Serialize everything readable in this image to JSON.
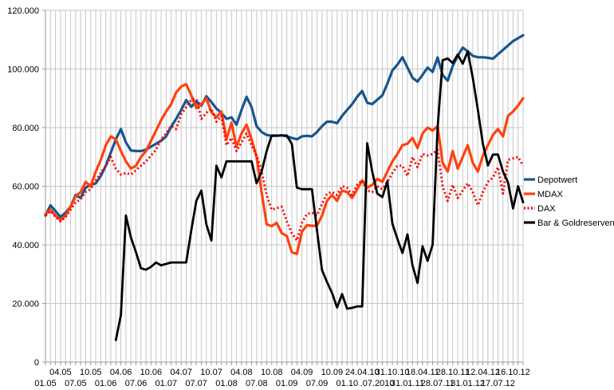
{
  "chart_data": {
    "type": "line",
    "title": "",
    "grid": true,
    "legend_position": "right",
    "x_start": "01.2005",
    "x_end": "12.2012",
    "points_per_series": 96,
    "x_interval": "monthly",
    "ylim": [
      0,
      120
    ],
    "y_unit_note": "values in thousands, German dot formatting on axis",
    "y_tick_labels": [
      "0",
      "20.000",
      "40.000",
      "60.000",
      "80.000",
      "100.000",
      "120.000"
    ],
    "y_tick_values": [
      0,
      20,
      40,
      60,
      80,
      100,
      120
    ],
    "x_tick_labels": [
      "01.05",
      "04.05",
      "07.05",
      "10.05",
      "01.06",
      "04.06",
      "07.06",
      "10.06",
      "01.07",
      "04.07",
      "07.07",
      "10.07",
      "01.08",
      "04.08",
      "07.08",
      "10.08",
      "01.09",
      "04.09",
      "07.09",
      "10.09",
      "01.10",
      "24.04.10",
      ".07.2010",
      "31.10.10",
      "31.01.11",
      "18.04.11",
      "28.07.11",
      "28.10.11",
      "31.01.12",
      "12.04.12",
      "17.07.12",
      "16.10.12"
    ],
    "x_tick_month_step": 3,
    "x_tick_row_pattern": "alternating lower/upper starting lower",
    "colors": {
      "depotwert": "#17558F",
      "mdax": "#FF420E",
      "dax": "#FF0000",
      "bar_goldreserven": "#000000",
      "gridline": "#c6c6c6",
      "axis": "#9a9a9a"
    },
    "series": [
      {
        "name": "Depotwert",
        "key": "depotwert",
        "style": "solid",
        "width": 3.2,
        "values": [
          50,
          53.5,
          51.5,
          49.5,
          51,
          53,
          57,
          56,
          59.5,
          60.5,
          61,
          63.5,
          67,
          71.5,
          76,
          79.5,
          75,
          72.2,
          72,
          72,
          72.5,
          73.5,
          74.5,
          75.5,
          77,
          80.3,
          83,
          86,
          89.4,
          87.1,
          89,
          87.5,
          90.7,
          88.7,
          86.5,
          85,
          83,
          83.5,
          81,
          86,
          90.5,
          87,
          80.5,
          78.5,
          77.5,
          77.2,
          77.2,
          77.4,
          77,
          76.5,
          76,
          77,
          77.2,
          77,
          78.5,
          80.5,
          82,
          82,
          81.5,
          84,
          86,
          88,
          90.5,
          92.5,
          88.5,
          88,
          89.5,
          91,
          95,
          99.5,
          101.5,
          104,
          100.5,
          97,
          95.7,
          98,
          100.5,
          99,
          103.9,
          98,
          96,
          101,
          104.5,
          107.3,
          106,
          104.5,
          104,
          104,
          103.8,
          103.5,
          105,
          106.5,
          108,
          109.5,
          110.5,
          111.5
        ]
      },
      {
        "name": "MDAX",
        "key": "mdax",
        "style": "solid",
        "width": 3.2,
        "values": [
          50.5,
          52,
          50,
          48.5,
          50,
          53,
          56.5,
          58,
          61.5,
          60,
          65,
          69,
          74,
          77,
          76,
          72,
          68.5,
          66,
          67,
          70,
          72,
          75.5,
          79,
          82.5,
          85.5,
          88,
          92,
          94,
          94.8,
          91,
          86.7,
          88,
          90,
          85.3,
          83.5,
          85.5,
          76,
          81.7,
          73.5,
          78,
          81,
          76,
          70,
          58,
          47,
          46.4,
          47.5,
          44,
          43,
          37.5,
          36.9,
          44.5,
          46.7,
          46.5,
          46.5,
          50,
          55,
          57,
          55,
          58.5,
          58,
          56,
          59,
          62,
          59.5,
          60.5,
          62.5,
          61.5,
          65,
          68.5,
          71,
          74,
          74.5,
          76.5,
          73,
          78,
          80,
          79,
          80.5,
          68,
          65,
          72,
          66,
          70,
          74,
          68,
          65,
          70.5,
          74,
          77.5,
          79.5,
          77,
          84,
          85.5,
          87.5,
          90
        ]
      },
      {
        "name": "DAX",
        "key": "dax",
        "style": "dotted",
        "width": 3,
        "values": [
          50,
          51.5,
          49.5,
          48,
          49.5,
          52,
          54.5,
          55.5,
          58,
          59,
          62,
          64.5,
          67,
          70,
          66,
          64,
          64.5,
          64,
          65.5,
          67,
          68.5,
          70.5,
          72.5,
          76,
          78,
          80.5,
          79.5,
          84.5,
          87,
          89.5,
          89.8,
          83,
          85,
          86.5,
          82,
          84,
          74,
          76.5,
          72,
          75,
          78,
          74,
          70.5,
          65,
          57,
          52,
          52.5,
          53,
          48,
          44,
          41.5,
          47.5,
          50.5,
          51,
          50,
          54,
          57.5,
          58,
          57,
          60,
          59.5,
          57,
          60.5,
          62,
          58.5,
          58,
          60,
          59,
          61.5,
          64.5,
          67,
          67,
          63.5,
          70,
          66.5,
          71,
          70.5,
          71,
          72.5,
          60,
          55,
          60.5,
          56,
          58.5,
          61,
          58,
          53.5,
          58,
          61.5,
          63,
          66.5,
          57.5,
          69,
          69.5,
          70,
          67
        ]
      },
      {
        "name": "Bar & Goldreserven",
        "key": "bar-goldreserven",
        "style": "solid",
        "width": 2.8,
        "values": [
          null,
          null,
          null,
          null,
          null,
          null,
          null,
          null,
          null,
          null,
          null,
          null,
          null,
          null,
          7.5,
          16,
          50,
          42.5,
          37.5,
          32,
          31.5,
          32.5,
          34,
          33,
          33.5,
          34,
          34,
          34,
          34,
          45,
          55,
          58.5,
          47,
          41.5,
          67,
          63,
          68.5,
          68.5,
          68.5,
          68.5,
          68.5,
          68.5,
          61,
          65,
          72,
          77.3,
          77.3,
          77.3,
          77.3,
          74.4,
          59.5,
          59,
          59,
          59,
          45,
          31.4,
          27.3,
          23.6,
          18.6,
          23.2,
          18.2,
          18.5,
          19,
          19,
          74.7,
          65,
          57.5,
          56.3,
          61.7,
          47.2,
          42,
          37.2,
          43.6,
          33,
          27,
          39.5,
          34.5,
          40,
          80,
          103,
          103.6,
          102,
          104.9,
          101.8,
          106,
          97,
          86,
          74.4,
          67.1,
          70.8,
          70.8,
          65,
          61.3,
          52.4,
          60,
          54.5
        ]
      }
    ],
    "legend": [
      "Depotwert",
      "MDAX",
      "DAX",
      "Bar & Goldreserven"
    ]
  }
}
